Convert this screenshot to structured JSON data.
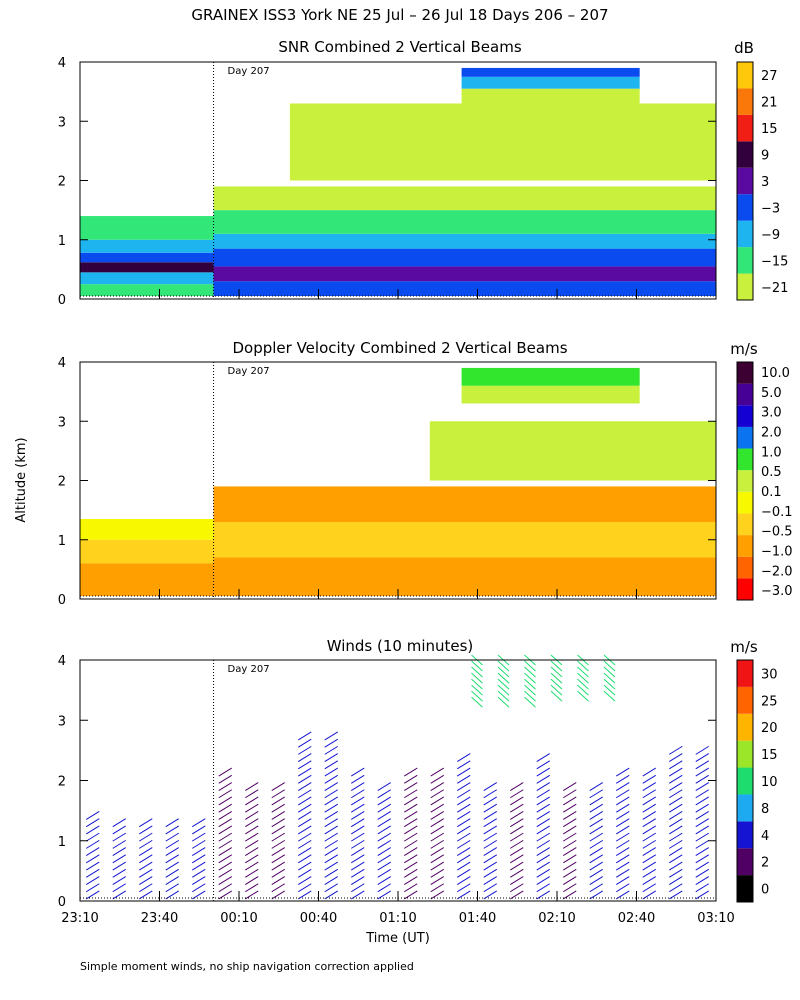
{
  "title": "GRAINEX ISS3 York NE  25 Jul – 26 Jul 18 Days 206 – 207",
  "ylabel": "Altitude (km)",
  "xlabel": "Time (UT)",
  "footnote": "Simple moment winds, no ship navigation correction applied",
  "day_marker": "Day 207",
  "colors": {
    "snr": [
      "#c8f03c",
      "#32e678",
      "#1eb4f0",
      "#0a4bf0",
      "#5a0aa0",
      "#32003c",
      "#f01e14",
      "#fa780a",
      "#ffc80a"
    ],
    "vel": [
      "#ff0000",
      "#ff6400",
      "#ffa000",
      "#ffd21e",
      "#f8f800",
      "#c8f03c",
      "#32e62d",
      "#0a73f0",
      "#1400d2",
      "#460096",
      "#3c0032"
    ],
    "wind": [
      "#000000",
      "#500064",
      "#1414d2",
      "#1eaaf0",
      "#1edc6e",
      "#9be628",
      "#ffb400",
      "#ff6400",
      "#f01414"
    ]
  },
  "chart_data": [
    {
      "type": "heatmap",
      "title": "SNR Combined 2 Vertical Beams",
      "colorbar_unit": "dB",
      "colorbar_ticks": [
        "27",
        "21",
        "15",
        "9",
        "3",
        "−3",
        "−9",
        "−15",
        "−21"
      ],
      "xlabel": "",
      "ylabel": "Altitude (km)",
      "x_ticks": [
        "",
        "",
        "",
        "",
        "",
        "",
        "",
        "",
        ""
      ],
      "y_ticks": [
        "0",
        "1",
        "2",
        "3",
        "4"
      ],
      "ylim": [
        0,
        4
      ],
      "grid": false,
      "layers": [
        {
          "t0": 0.0,
          "t1": 0.21,
          "bottom": 0.05,
          "top": 1.4,
          "levels": [
            [
              0.05,
              0.25,
              1
            ],
            [
              0.25,
              0.45,
              2
            ],
            [
              0.45,
              0.62,
              5
            ],
            [
              0.62,
              0.78,
              3
            ],
            [
              0.78,
              1.0,
              2
            ],
            [
              1.0,
              1.4,
              1
            ]
          ]
        },
        {
          "t0": 0.21,
          "t1": 1.0,
          "bottom": 0.05,
          "top": 1.9,
          "levels": [
            [
              0.05,
              0.3,
              3
            ],
            [
              0.3,
              0.55,
              4
            ],
            [
              0.55,
              0.85,
              3
            ],
            [
              0.85,
              1.1,
              2
            ],
            [
              1.1,
              1.5,
              1
            ],
            [
              1.5,
              1.9,
              0
            ]
          ]
        },
        {
          "t0": 0.33,
          "t1": 1.0,
          "bottom": 2.0,
          "top": 3.3,
          "levels": [
            [
              2.0,
              3.3,
              0
            ]
          ]
        },
        {
          "t0": 0.6,
          "t1": 0.88,
          "bottom": 3.3,
          "top": 3.9,
          "levels": [
            [
              3.3,
              3.55,
              0
            ],
            [
              3.55,
              3.75,
              2
            ],
            [
              3.75,
              3.9,
              3
            ]
          ]
        }
      ]
    },
    {
      "type": "heatmap",
      "title": "Doppler Velocity Combined 2 Vertical Beams",
      "colorbar_unit": "m/s",
      "colorbar_ticks": [
        "10.0",
        "5.0",
        "3.0",
        "2.0",
        "1.0",
        "0.5",
        "0.1",
        "−0.1",
        "−0.5",
        "−1.0",
        "−2.0",
        "−3.0"
      ],
      "xlabel": "",
      "ylabel": "Altitude (km)",
      "x_ticks": [
        "",
        "",
        "",
        "",
        "",
        "",
        "",
        "",
        ""
      ],
      "y_ticks": [
        "0",
        "1",
        "2",
        "3",
        "4"
      ],
      "ylim": [
        0,
        4
      ],
      "grid": false,
      "layers": [
        {
          "t0": 0.0,
          "t1": 0.21,
          "bottom": 0.05,
          "top": 1.35,
          "levels": [
            [
              0.05,
              0.6,
              2
            ],
            [
              0.6,
              1.0,
              3
            ],
            [
              1.0,
              1.35,
              4
            ]
          ]
        },
        {
          "t0": 0.21,
          "t1": 1.0,
          "bottom": 0.05,
          "top": 1.9,
          "levels": [
            [
              0.05,
              0.7,
              2
            ],
            [
              0.7,
              1.3,
              3
            ],
            [
              1.3,
              1.9,
              2
            ]
          ]
        },
        {
          "t0": 0.55,
          "t1": 1.0,
          "bottom": 2.0,
          "top": 3.0,
          "levels": [
            [
              2.0,
              3.0,
              5
            ]
          ]
        },
        {
          "t0": 0.6,
          "t1": 0.88,
          "bottom": 3.3,
          "top": 3.9,
          "levels": [
            [
              3.3,
              3.6,
              5
            ],
            [
              3.6,
              3.9,
              6
            ]
          ]
        }
      ]
    },
    {
      "type": "scatter",
      "title": "Winds (10 minutes)",
      "colorbar_unit": "m/s",
      "colorbar_ticks": [
        "30",
        "25",
        "20",
        "15",
        "10",
        "8",
        "4",
        "2",
        "0"
      ],
      "xlabel": "Time (UT)",
      "ylabel": "Altitude (km)",
      "x_ticks": [
        "23:10",
        "23:40",
        "00:10",
        "00:40",
        "01:10",
        "01:40",
        "02:10",
        "02:40",
        "03:10"
      ],
      "y_ticks": [
        "0",
        "1",
        "2",
        "3",
        "4"
      ],
      "ylim": [
        0,
        4
      ],
      "grid": false,
      "wind_profiles": [
        {
          "time": "23:15",
          "top_km": 1.5,
          "speed_class": 2
        },
        {
          "time": "23:25",
          "top_km": 1.4,
          "speed_class": 2
        },
        {
          "time": "23:35",
          "top_km": 1.4,
          "speed_class": 2
        },
        {
          "time": "23:45",
          "top_km": 1.4,
          "speed_class": 2
        },
        {
          "time": "23:55",
          "top_km": 1.4,
          "speed_class": 2
        },
        {
          "time": "00:05",
          "top_km": 2.2,
          "speed_class": 1
        },
        {
          "time": "00:15",
          "top_km": 2.0,
          "speed_class": 1
        },
        {
          "time": "00:25",
          "top_km": 2.0,
          "speed_class": 1
        },
        {
          "time": "00:35",
          "top_km": 2.8,
          "speed_class": 2
        },
        {
          "time": "00:45",
          "top_km": 2.8,
          "speed_class": 2
        },
        {
          "time": "00:55",
          "top_km": 2.2,
          "speed_class": 2
        },
        {
          "time": "01:05",
          "top_km": 2.0,
          "speed_class": 2
        },
        {
          "time": "01:15",
          "top_km": 2.2,
          "speed_class": 1
        },
        {
          "time": "01:25",
          "top_km": 2.2,
          "speed_class": 1
        },
        {
          "time": "01:35",
          "top_km": 2.4,
          "speed_class": 2
        },
        {
          "time": "01:45",
          "top_km": 2.0,
          "speed_class": 2
        },
        {
          "time": "01:55",
          "top_km": 2.0,
          "speed_class": 1
        },
        {
          "time": "02:05",
          "top_km": 2.4,
          "speed_class": 2
        },
        {
          "time": "02:15",
          "top_km": 2.0,
          "speed_class": 1
        },
        {
          "time": "02:25",
          "top_km": 2.0,
          "speed_class": 2
        },
        {
          "time": "02:35",
          "top_km": 2.2,
          "speed_class": 2
        },
        {
          "time": "02:45",
          "top_km": 2.2,
          "speed_class": 2
        },
        {
          "time": "02:55",
          "top_km": 2.6,
          "speed_class": 2
        },
        {
          "time": "03:05",
          "top_km": 2.6,
          "speed_class": 2
        }
      ],
      "upper_wind_clusters": [
        {
          "time": "01:40",
          "bottom_km": 3.3,
          "top_km": 4.0,
          "speed_class": 4
        },
        {
          "time": "01:50",
          "bottom_km": 3.3,
          "top_km": 4.0,
          "speed_class": 4
        },
        {
          "time": "02:00",
          "bottom_km": 3.3,
          "top_km": 4.0,
          "speed_class": 4
        },
        {
          "time": "02:10",
          "bottom_km": 3.4,
          "top_km": 4.0,
          "speed_class": 4
        },
        {
          "time": "02:20",
          "bottom_km": 3.4,
          "top_km": 4.0,
          "speed_class": 4
        },
        {
          "time": "02:30",
          "bottom_km": 3.4,
          "top_km": 4.0,
          "speed_class": 4
        }
      ]
    }
  ]
}
